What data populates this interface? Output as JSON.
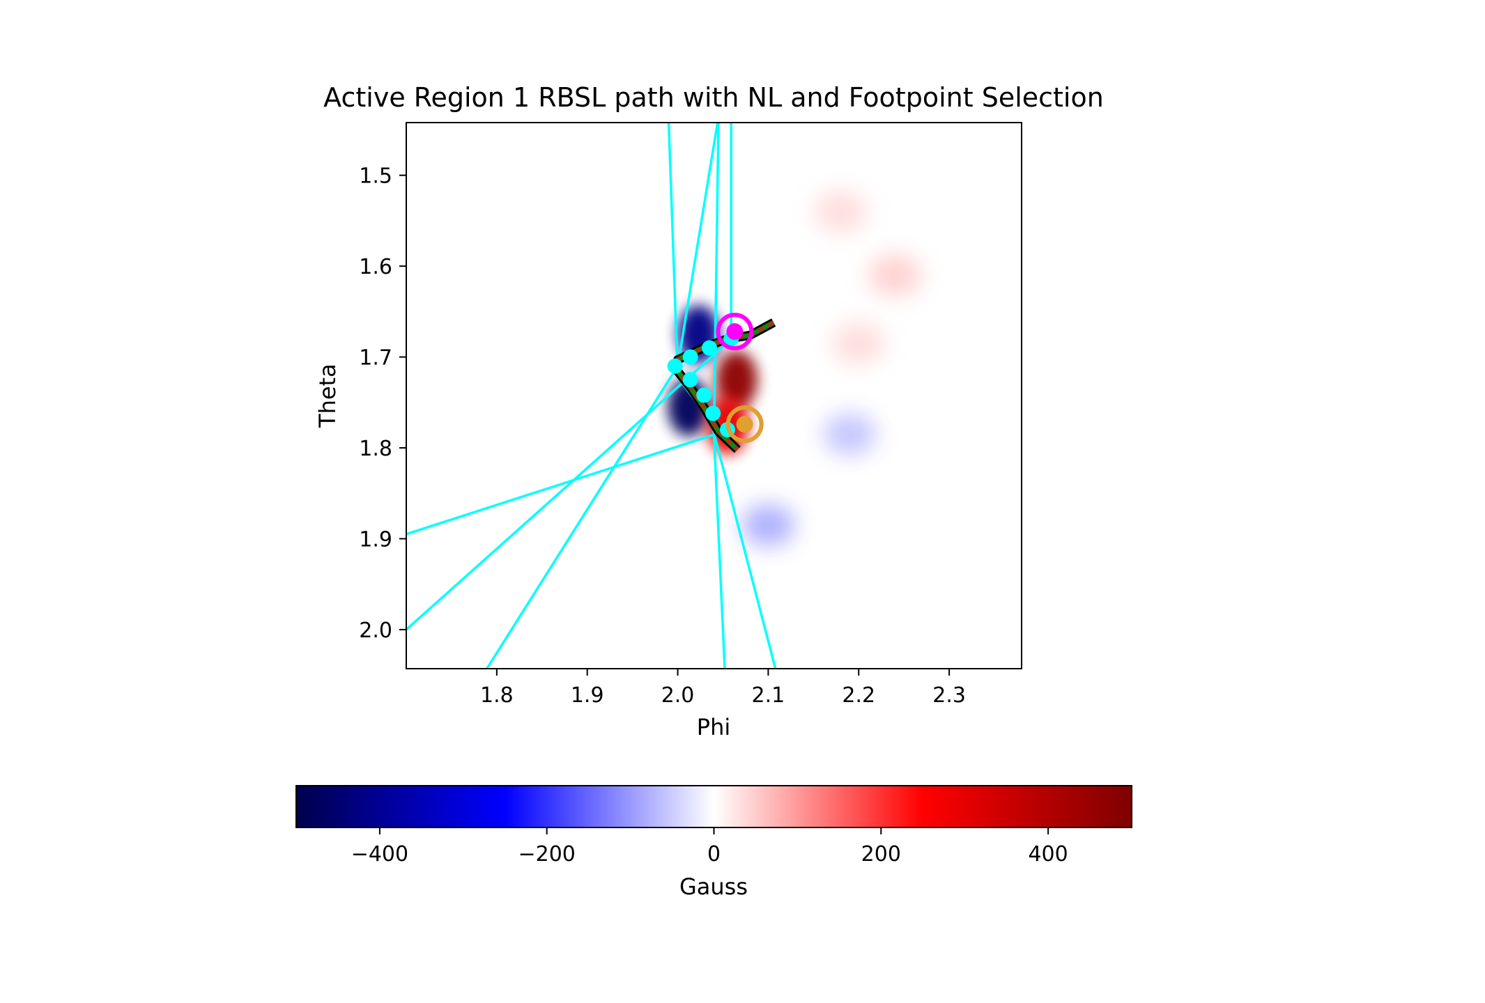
{
  "chart_data": {
    "type": "heatmap",
    "title": "Active Region 1 RBSL path with NL and Footpoint Selection",
    "xlabel": "Phi",
    "ylabel": "Theta",
    "xlim": [
      1.7,
      2.38
    ],
    "ylim": [
      2.043,
      1.442
    ],
    "y_inverted": true,
    "xticks": [
      1.8,
      1.9,
      2.0,
      2.1,
      2.2,
      2.3
    ],
    "xtick_labels": [
      "1.8",
      "1.9",
      "2.0",
      "2.1",
      "2.2",
      "2.3"
    ],
    "yticks": [
      1.5,
      1.6,
      1.7,
      1.8,
      1.9,
      2.0
    ],
    "ytick_labels": [
      "1.5",
      "1.6",
      "1.7",
      "1.8",
      "1.9",
      "2.0"
    ],
    "colorbar": {
      "label": "Gauss",
      "range": [
        -500,
        500
      ],
      "ticks": [
        -400,
        -200,
        0,
        200,
        400
      ],
      "tick_labels": [
        "−400",
        "−200",
        "0",
        "200",
        "400"
      ],
      "colormap": "seismic",
      "orientation": "horizontal",
      "placement": "below"
    },
    "field_blobs": [
      {
        "phi": 2.023,
        "theta": 1.675,
        "value": -420
      },
      {
        "phi": 2.012,
        "theta": 1.755,
        "value": -480
      },
      {
        "phi": 2.065,
        "theta": 1.725,
        "value": 470
      },
      {
        "phi": 2.055,
        "theta": 1.775,
        "value": 300
      },
      {
        "phi": 2.1,
        "theta": 1.885,
        "value": -140
      },
      {
        "phi": 2.19,
        "theta": 1.785,
        "value": -100
      },
      {
        "phi": 2.24,
        "theta": 1.61,
        "value": 80
      },
      {
        "phi": 2.18,
        "theta": 1.54,
        "value": 60
      },
      {
        "phi": 2.2,
        "theta": 1.685,
        "value": 60
      }
    ],
    "polarity_inversion_line": {
      "phi": [
        2.106,
        2.08,
        2.055,
        2.03,
        2.0,
        1.997,
        2.015,
        2.03,
        2.045,
        2.066
      ],
      "theta": [
        1.662,
        1.676,
        1.68,
        1.689,
        1.703,
        1.712,
        1.735,
        1.757,
        1.782,
        1.802
      ],
      "color": "#138813"
    },
    "selected_points": {
      "phi": [
        2.059,
        2.035,
        2.014,
        1.997,
        2.014,
        2.029,
        2.039,
        2.055
      ],
      "theta": [
        1.68,
        1.69,
        1.7,
        1.71,
        1.725,
        1.742,
        1.762,
        1.78
      ],
      "color": "#00ffff"
    },
    "field_lines": [
      [
        [
          2.052,
          2.044
        ],
        [
          2.04,
          1.785
        ],
        [
          2.045,
          1.442
        ]
      ],
      [
        [
          2.108,
          2.043
        ],
        [
          2.037,
          1.772
        ],
        [
          2.0,
          1.722
        ],
        [
          1.99,
          1.442
        ]
      ],
      [
        [
          1.789,
          2.043
        ],
        [
          2.0,
          1.71
        ],
        [
          2.044,
          1.442
        ]
      ],
      [
        [
          1.7,
          2.0
        ],
        [
          2.015,
          1.72
        ],
        [
          2.035,
          1.702
        ],
        [
          2.059,
          1.68
        ],
        [
          2.059,
          1.442
        ]
      ],
      [
        [
          1.7,
          1.895
        ],
        [
          2.045,
          1.784
        ],
        [
          2.056,
          1.78
        ]
      ]
    ],
    "field_line_color": "#00ffff",
    "footpoints": [
      {
        "phi": 2.063,
        "theta": 1.672,
        "color": "#ff00ff"
      },
      {
        "phi": 2.074,
        "theta": 1.774,
        "color": "#e0a030"
      }
    ]
  }
}
